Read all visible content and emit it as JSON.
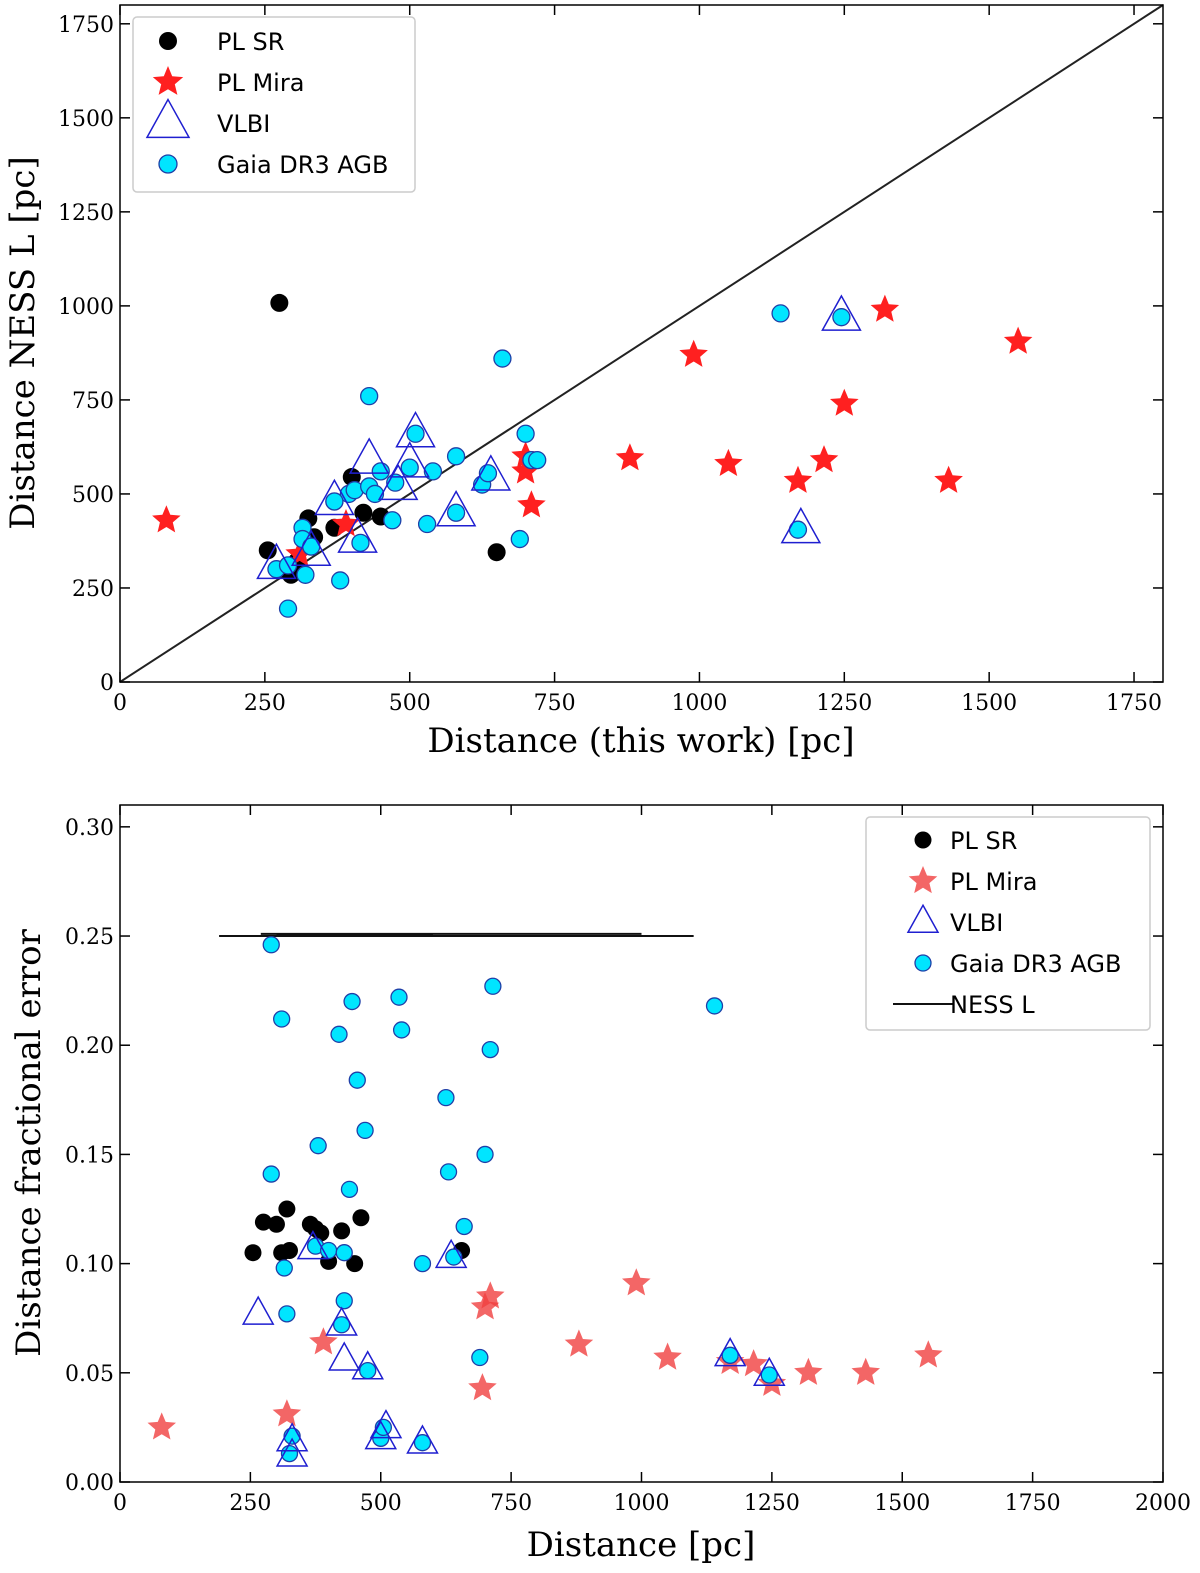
{
  "chart_data": [
    {
      "type": "scatter",
      "xlabel": "Distance (this work) [pc]",
      "ylabel": "Distance NESS L [pc]",
      "xlim": [
        0,
        1800
      ],
      "ylim": [
        0,
        1800
      ],
      "xticks": [
        "0",
        "250",
        "500",
        "750",
        "1000",
        "1250",
        "1500",
        "1750"
      ],
      "yticks": [
        "0",
        "250",
        "500",
        "750",
        "1000",
        "1250",
        "1500",
        "1750"
      ],
      "legend": {
        "position": "upper-left",
        "entries": [
          "PL SR",
          "PL Mira",
          "VLBI",
          "Gaia DR3 AGB"
        ]
      },
      "reference_line": {
        "label": "y = x",
        "from": [
          0,
          0
        ],
        "to": [
          1800,
          1800
        ]
      },
      "series": [
        {
          "name": "PL SR",
          "marker": "circle",
          "color": "#000000",
          "points": [
            [
              275,
              1008
            ],
            [
              255,
              350
            ],
            [
              295,
              285
            ],
            [
              305,
              320
            ],
            [
              325,
              435
            ],
            [
              335,
              385
            ],
            [
              370,
              410
            ],
            [
              400,
              545
            ],
            [
              420,
              450
            ],
            [
              450,
              440
            ],
            [
              650,
              345
            ],
            [
              310,
              300
            ]
          ]
        },
        {
          "name": "PL Mira",
          "marker": "star",
          "color": "#ff2020",
          "points": [
            [
              80,
              430
            ],
            [
              390,
              420
            ],
            [
              700,
              600
            ],
            [
              700,
              560
            ],
            [
              710,
              470
            ],
            [
              880,
              595
            ],
            [
              990,
              870
            ],
            [
              1050,
              580
            ],
            [
              1170,
              535
            ],
            [
              1215,
              590
            ],
            [
              1250,
              740
            ],
            [
              1320,
              990
            ],
            [
              1430,
              535
            ],
            [
              1550,
              905
            ],
            [
              310,
              340
            ]
          ]
        },
        {
          "name": "VLBI",
          "marker": "triangle",
          "color": "#1f1fd0",
          "points": [
            [
              270,
              310
            ],
            [
              330,
              345
            ],
            [
              370,
              480
            ],
            [
              410,
              380
            ],
            [
              430,
              590
            ],
            [
              480,
              520
            ],
            [
              500,
              580
            ],
            [
              510,
              660
            ],
            [
              580,
              450
            ],
            [
              640,
              545
            ],
            [
              1175,
              405
            ],
            [
              1245,
              970
            ]
          ]
        },
        {
          "name": "Gaia DR3 AGB",
          "marker": "circle",
          "color": "#00e5ff",
          "points": [
            [
              270,
              300
            ],
            [
              290,
              195
            ],
            [
              290,
              310
            ],
            [
              315,
              410
            ],
            [
              315,
              380
            ],
            [
              320,
              285
            ],
            [
              330,
              360
            ],
            [
              370,
              480
            ],
            [
              380,
              270
            ],
            [
              395,
              500
            ],
            [
              405,
              510
            ],
            [
              415,
              370
            ],
            [
              430,
              520
            ],
            [
              430,
              760
            ],
            [
              440,
              500
            ],
            [
              450,
              560
            ],
            [
              470,
              430
            ],
            [
              475,
              530
            ],
            [
              500,
              570
            ],
            [
              510,
              660
            ],
            [
              540,
              560
            ],
            [
              530,
              420
            ],
            [
              580,
              600
            ],
            [
              580,
              450
            ],
            [
              625,
              525
            ],
            [
              635,
              555
            ],
            [
              660,
              860
            ],
            [
              690,
              380
            ],
            [
              700,
              660
            ],
            [
              710,
              590
            ],
            [
              720,
              590
            ],
            [
              1140,
              980
            ],
            [
              1170,
              405
            ],
            [
              1245,
              970
            ],
            [
              370,
              480
            ]
          ]
        }
      ]
    },
    {
      "type": "scatter",
      "xlabel": "Distance [pc]",
      "ylabel": "Distance fractional error",
      "xlim": [
        0,
        2000
      ],
      "ylim": [
        0,
        0.31
      ],
      "xticks": [
        "0",
        "250",
        "500",
        "750",
        "1000",
        "1250",
        "1500",
        "1750",
        "2000"
      ],
      "yticks": [
        "0.00",
        "0.05",
        "0.10",
        "0.15",
        "0.20",
        "0.25",
        "0.30"
      ],
      "legend": {
        "position": "upper-right",
        "entries": [
          "PL SR",
          "PL Mira",
          "VLBI",
          "Gaia DR3 AGB",
          "NESS L"
        ]
      },
      "ness_lines": [
        {
          "x0": 190,
          "x1": 1100,
          "y": 0.25
        },
        {
          "x0": 270,
          "x1": 1000,
          "y": 0.251
        },
        {
          "x0": 300,
          "x1": 600,
          "y": 0.2505
        }
      ],
      "series": [
        {
          "name": "PL SR",
          "marker": "circle",
          "color": "#000000",
          "points": [
            [
              255,
              0.105
            ],
            [
              275,
              0.119
            ],
            [
              300,
              0.118
            ],
            [
              310,
              0.105
            ],
            [
              320,
              0.125
            ],
            [
              325,
              0.106
            ],
            [
              365,
              0.118
            ],
            [
              375,
              0.116
            ],
            [
              385,
              0.114
            ],
            [
              400,
              0.101
            ],
            [
              425,
              0.115
            ],
            [
              450,
              0.1
            ],
            [
              462,
              0.121
            ],
            [
              655,
              0.106
            ]
          ]
        },
        {
          "name": "PL Mira",
          "marker": "star",
          "color": "#f04040",
          "points": [
            [
              80,
              0.025
            ],
            [
              320,
              0.031
            ],
            [
              390,
              0.064
            ],
            [
              695,
              0.043
            ],
            [
              700,
              0.08
            ],
            [
              710,
              0.085
            ],
            [
              880,
              0.063
            ],
            [
              990,
              0.091
            ],
            [
              1050,
              0.057
            ],
            [
              1170,
              0.055
            ],
            [
              1215,
              0.054
            ],
            [
              1250,
              0.045
            ],
            [
              1320,
              0.05
            ],
            [
              1430,
              0.05
            ],
            [
              1550,
              0.058
            ]
          ]
        },
        {
          "name": "VLBI",
          "marker": "triangle",
          "color": "#1f1fd0",
          "points": [
            [
              265,
              0.077
            ],
            [
              330,
              0.019
            ],
            [
              330,
              0.012
            ],
            [
              370,
              0.107
            ],
            [
              425,
              0.072
            ],
            [
              430,
              0.056
            ],
            [
              475,
              0.052
            ],
            [
              500,
              0.02
            ],
            [
              510,
              0.025
            ],
            [
              580,
              0.018
            ],
            [
              635,
              0.103
            ],
            [
              1170,
              0.058
            ],
            [
              1245,
              0.049
            ]
          ]
        },
        {
          "name": "Gaia DR3 AGB",
          "marker": "circle",
          "color": "#00e5ff",
          "points": [
            [
              290,
              0.246
            ],
            [
              290,
              0.141
            ],
            [
              310,
              0.212
            ],
            [
              315,
              0.098
            ],
            [
              320,
              0.077
            ],
            [
              330,
              0.021
            ],
            [
              325,
              0.013
            ],
            [
              380,
              0.154
            ],
            [
              375,
              0.108
            ],
            [
              400,
              0.106
            ],
            [
              420,
              0.205
            ],
            [
              425,
              0.072
            ],
            [
              430,
              0.083
            ],
            [
              430,
              0.105
            ],
            [
              440,
              0.134
            ],
            [
              445,
              0.22
            ],
            [
              455,
              0.184
            ],
            [
              470,
              0.161
            ],
            [
              475,
              0.051
            ],
            [
              500,
              0.02
            ],
            [
              505,
              0.025
            ],
            [
              535,
              0.222
            ],
            [
              540,
              0.207
            ],
            [
              580,
              0.018
            ],
            [
              580,
              0.1
            ],
            [
              625,
              0.176
            ],
            [
              630,
              0.142
            ],
            [
              640,
              0.103
            ],
            [
              660,
              0.117
            ],
            [
              690,
              0.057
            ],
            [
              700,
              0.15
            ],
            [
              710,
              0.198
            ],
            [
              715,
              0.227
            ],
            [
              1140,
              0.218
            ],
            [
              1170,
              0.058
            ],
            [
              1245,
              0.049
            ]
          ]
        }
      ]
    }
  ]
}
